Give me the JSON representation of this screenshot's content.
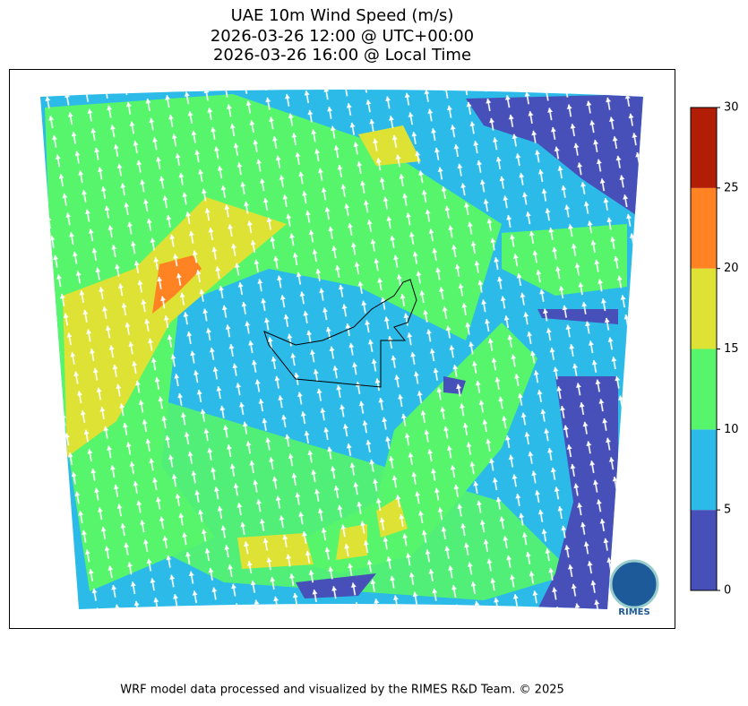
{
  "title": [
    "UAE 10m Wind Speed (m/s)",
    "2026-03-26 12:00 @ UTC+00:00",
    "2026-03-26 16:00 @ Local Time"
  ],
  "colorbar": {
    "lim": [
      0,
      30
    ],
    "ticks": [
      0,
      5,
      10,
      15,
      20,
      25,
      30
    ],
    "colors": [
      "#4750b8",
      "#2cbbe8",
      "#56f56c",
      "#dde234",
      "#ff8223",
      "#b21e05"
    ]
  },
  "logo": "RIMES",
  "footer": "WRF model data processed and visualized by the RIMES R&D Team. © 2025"
}
